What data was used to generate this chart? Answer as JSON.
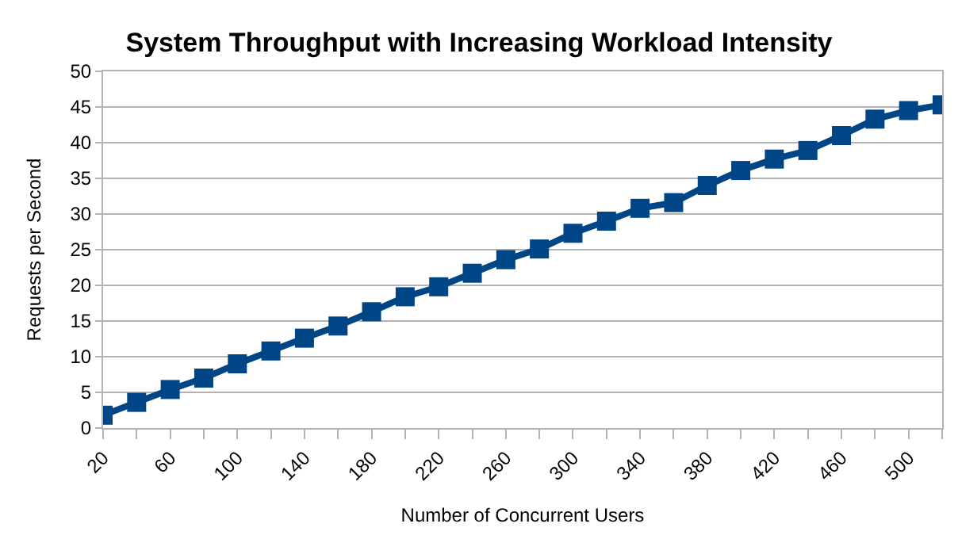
{
  "chart_data": {
    "type": "line",
    "title": "System Throughput with Increasing Workload Intensity",
    "xlabel": "Number of Concurrent Users",
    "ylabel": "Requests per Second",
    "x": [
      20,
      40,
      60,
      80,
      100,
      120,
      140,
      160,
      180,
      200,
      220,
      240,
      260,
      280,
      300,
      320,
      340,
      360,
      380,
      400,
      420,
      440,
      460,
      480,
      500,
      520
    ],
    "series": [
      {
        "color": "#004586",
        "values": [
          1.8,
          3.6,
          5.4,
          7.0,
          9.0,
          10.8,
          12.6,
          14.3,
          16.3,
          18.4,
          19.8,
          21.7,
          23.6,
          25.1,
          27.3,
          29.0,
          30.8,
          31.6,
          34.0,
          36.1,
          37.7,
          38.9,
          41.0,
          43.3,
          44.5,
          45.3
        ]
      }
    ],
    "xlim": [
      20,
      520
    ],
    "xticks": [
      20,
      {
        "value": 40,
        "label": null
      },
      60,
      {
        "value": 80,
        "label": null
      },
      100,
      {
        "value": 120,
        "label": null
      },
      140,
      {
        "value": 160,
        "label": null
      },
      180,
      {
        "value": 200,
        "label": null
      },
      220,
      {
        "value": 240,
        "label": null
      },
      260,
      {
        "value": 280,
        "label": null
      },
      300,
      {
        "value": 320,
        "label": null
      },
      340,
      {
        "value": 360,
        "label": null
      },
      380,
      {
        "value": 400,
        "label": null
      },
      420,
      {
        "value": 440,
        "label": null
      },
      460,
      {
        "value": 480,
        "label": null
      },
      500,
      {
        "value": 520,
        "label": null
      }
    ],
    "ylim": [
      0,
      50
    ],
    "yticks": [
      0,
      5,
      10,
      15,
      20,
      25,
      30,
      35,
      40,
      45,
      50
    ],
    "grid": "y",
    "marker": "square",
    "line_style": "solid"
  }
}
